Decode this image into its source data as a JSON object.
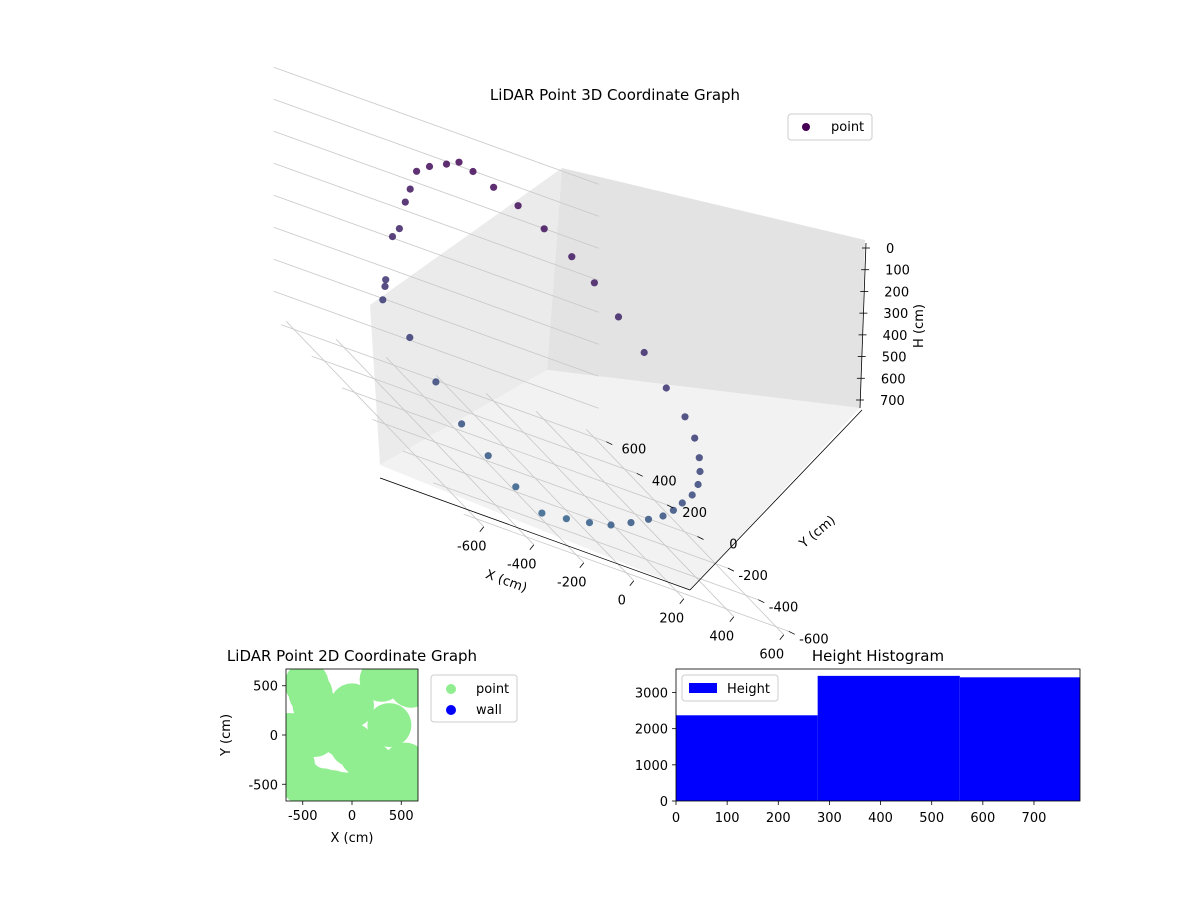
{
  "chart_data": [
    {
      "type": "scatter",
      "title": "LiDAR Point 3D Coordinate Graph",
      "xlabel": "X (cm)",
      "ylabel": "Y (cm)",
      "zlabel": "H (cm)",
      "legend": [
        "point"
      ],
      "legend_position": "top-right",
      "xlim": [
        -650,
        650
      ],
      "ylim": [
        -650,
        650
      ],
      "zlim": [
        0,
        780
      ],
      "z_inverted": true,
      "x_ticks": [
        -600,
        -400,
        -200,
        0,
        200,
        400,
        600
      ],
      "y_ticks": [
        -600,
        -400,
        -200,
        0,
        200,
        400,
        600
      ],
      "z_ticks": [
        0,
        100,
        200,
        300,
        400,
        500,
        600,
        700
      ],
      "grid": true,
      "series": [
        {
          "name": "point",
          "color_map": "viridis",
          "color_range": [
            "#440154",
            "#31688e"
          ],
          "points_x": [
            -600,
            -560,
            -500,
            -430,
            -360,
            -300,
            -250,
            -200,
            -130,
            -50,
            0,
            50,
            120,
            200,
            280,
            360,
            420,
            480,
            540,
            580,
            600,
            590,
            560,
            520,
            470,
            410,
            340,
            280,
            220,
            150,
            80,
            0,
            -80,
            -160,
            -240,
            -320,
            -400,
            -470,
            -530,
            -580
          ],
          "points_y": [
            0,
            80,
            160,
            230,
            300,
            360,
            410,
            450,
            480,
            500,
            500,
            490,
            470,
            440,
            400,
            350,
            300,
            240,
            170,
            90,
            0,
            -80,
            -160,
            -230,
            -300,
            -360,
            -410,
            -450,
            -480,
            -500,
            -500,
            -500,
            -490,
            -470,
            -440,
            -400,
            -350,
            -290,
            -220,
            -130
          ],
          "points_h": [
            350,
            420,
            380,
            260,
            250,
            180,
            150,
            100,
            80,
            60,
            40,
            50,
            70,
            90,
            120,
            160,
            200,
            260,
            320,
            380,
            420,
            450,
            480,
            500,
            520,
            540,
            560,
            580,
            600,
            620,
            650,
            680,
            700,
            720,
            740,
            700,
            650,
            600,
            520,
            440
          ]
        }
      ]
    },
    {
      "type": "scatter",
      "title": "LiDAR Point 2D Coordinate Graph",
      "xlabel": "X (cm)",
      "ylabel": "Y (cm)",
      "xlim": [
        -670,
        670
      ],
      "ylim": [
        -670,
        670
      ],
      "x_ticks": [
        -500,
        0,
        500
      ],
      "y_ticks": [
        500,
        0,
        -500
      ],
      "legend": [
        "point",
        "wall"
      ],
      "legend_position": "outside-right",
      "series": [
        {
          "name": "point",
          "color": "#90ee90",
          "x": [
            -460,
            -420,
            -380,
            -300,
            -200,
            -100,
            0,
            100,
            200,
            300,
            380,
            460,
            540,
            600,
            -560,
            -600,
            -500,
            -400,
            -300,
            -200,
            -100,
            0,
            100,
            200,
            300,
            400,
            500,
            560,
            -380,
            0,
            380,
            540,
            -640,
            640,
            520
          ],
          "y": [
            520,
            420,
            300,
            180,
            100,
            0,
            -100,
            -200,
            -300,
            -380,
            -440,
            -500,
            -560,
            500,
            0,
            -300,
            -480,
            -540,
            -560,
            -580,
            -600,
            -600,
            -580,
            -560,
            560,
            600,
            640,
            620,
            0,
            300,
            100,
            -300,
            0,
            -420,
            -360
          ]
        },
        {
          "name": "wall",
          "color": "#0000ff",
          "x": [],
          "y": []
        }
      ]
    },
    {
      "type": "bar",
      "title": "Height Histogram",
      "legend": [
        "Height"
      ],
      "legend_position": "top-left",
      "xlim": [
        0,
        790
      ],
      "ylim": [
        0,
        3650
      ],
      "x_ticks": [
        0,
        100,
        200,
        300,
        400,
        500,
        600,
        700
      ],
      "y_ticks": [
        0,
        1000,
        2000,
        3000
      ],
      "color": "#0000ff",
      "bins": [
        {
          "x0": 0,
          "x1": 277,
          "count": 2370
        },
        {
          "x0": 277,
          "x1": 555,
          "count": 3460
        },
        {
          "x0": 555,
          "x1": 790,
          "count": 3420
        }
      ]
    }
  ]
}
